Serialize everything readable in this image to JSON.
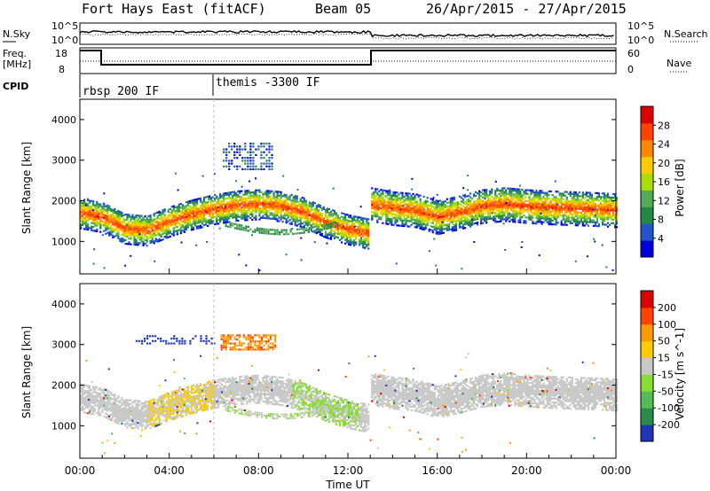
{
  "header": {
    "title": "Fort Hays East (fitACF)",
    "beam": "Beam 05",
    "dates": "26/Apr/2015 - 27/Apr/2015"
  },
  "sky_panel": {
    "left_label": "N.Sky",
    "right_label": "N.Search",
    "tick_top": "10^5",
    "tick_bottom": "10^0",
    "right_tick_top": "10^5",
    "right_tick_bottom": "10^0"
  },
  "freq_panel": {
    "left_label_1": "Freq.",
    "left_label_2": "[MHz]",
    "right_label": "Nave",
    "tick_top": "18",
    "tick_bottom": "8",
    "right_tick_top": "60",
    "right_tick_bottom": "0"
  },
  "cpid": {
    "label": "CPID",
    "mode1": "rbsp 200 IF",
    "mode2": "themis -3300 IF"
  },
  "chart_data": [
    {
      "type": "heatmap",
      "parameter": "Power",
      "ylabel": "Slant Range [km]",
      "ylim": [
        200,
        4500
      ],
      "yticks": [
        "4000",
        "3000",
        "2000",
        "1000"
      ],
      "colorbar": {
        "label": "Power [dB]",
        "ticks": [
          "28",
          "24",
          "20",
          "16",
          "12",
          "8",
          "4"
        ],
        "colors": [
          "#0000dd",
          "#2255cc",
          "#228844",
          "#55aa55",
          "#aadd00",
          "#ffcc00",
          "#ff8800",
          "#ff4400",
          "#dd0000"
        ]
      },
      "bands": [
        {
          "t": [
            0,
            1,
            2,
            3,
            4,
            5,
            6,
            7,
            8,
            9,
            10,
            11,
            12,
            12.9
          ],
          "r": [
            1680,
            1580,
            1300,
            1250,
            1480,
            1650,
            1780,
            1870,
            1900,
            1850,
            1700,
            1450,
            1280,
            1180
          ]
        },
        {
          "t": [
            13,
            14,
            15,
            16,
            17,
            18,
            19,
            20,
            21,
            22,
            23,
            24
          ],
          "r": [
            1900,
            1800,
            1750,
            1580,
            1700,
            1850,
            1900,
            1850,
            1820,
            1800,
            1780,
            1750
          ]
        }
      ]
    },
    {
      "type": "heatmap",
      "parameter": "Velocity",
      "ylabel": "Slant Range [km]",
      "ylim": [
        200,
        4500
      ],
      "yticks": [
        "4000",
        "3000",
        "2000",
        "1000"
      ],
      "colorbar": {
        "label": "Velocity [m s^-1]",
        "ticks": [
          "200",
          "100",
          "50",
          "15",
          "-15",
          "-50",
          "-100",
          "-200"
        ],
        "colors": [
          "#2233bb",
          "#2a8a4a",
          "#55bb55",
          "#88dd33",
          "#c8c8c8",
          "#ffcc00",
          "#ff9900",
          "#ff4400",
          "#dd0000"
        ]
      }
    }
  ],
  "xaxis": {
    "label": "Time UT",
    "ticks": [
      "00:00",
      "04:00",
      "08:00",
      "12:00",
      "16:00",
      "20:00",
      "00:00"
    ]
  }
}
